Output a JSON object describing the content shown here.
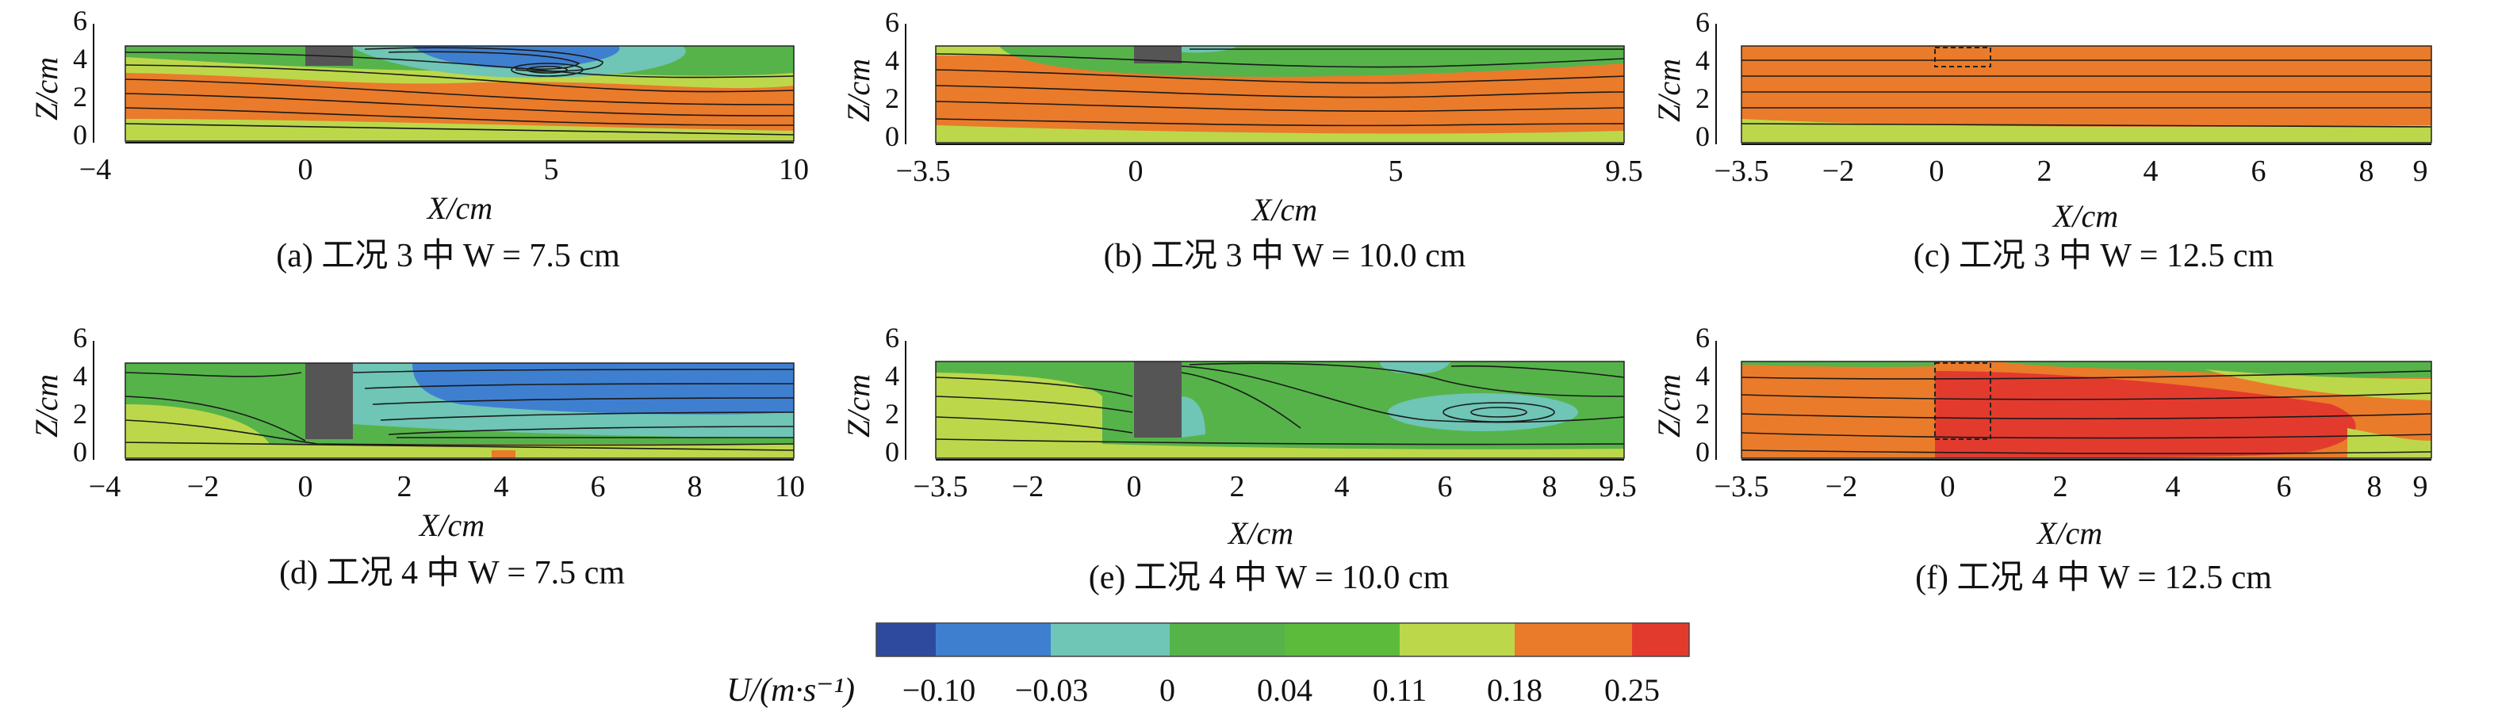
{
  "colors": {
    "c1": "#2e4a9e",
    "c2": "#3f7fd0",
    "c3": "#6fc5b6",
    "c4": "#56b34a",
    "c5": "#5dbb3c",
    "c6": "#bcd84a",
    "c7": "#ea7b2a",
    "c8": "#e33a2e",
    "obstacle": "#555555",
    "streamline": "#1a1a1a"
  },
  "x_label": "X/cm",
  "z_label": "Z/cm",
  "panels": [
    {
      "caption": "(a) 工况 3 中 W = 7.5 cm",
      "xrange": [
        -4,
        10
      ],
      "xticks": [
        "−4",
        "0",
        "5",
        "10"
      ],
      "xtick_values": [
        -4,
        0,
        5,
        10
      ],
      "zticks": [
        "0",
        "2",
        "4",
        "6"
      ],
      "obstacle": "solid-top",
      "vortex_x": 5.0
    },
    {
      "caption": "(b) 工况 3 中 W = 10.0 cm",
      "xrange": [
        -3.5,
        9.5
      ],
      "xticks": [
        "−3.5",
        "0",
        "5",
        "9.5"
      ],
      "xtick_values": [
        -3.5,
        0,
        5,
        9.5
      ],
      "zticks": [
        "0",
        "2",
        "4",
        "6"
      ],
      "obstacle": "solid-top",
      "vortex_x": null
    },
    {
      "caption": "(c) 工况 3 中 W = 12.5 cm",
      "xrange": [
        -3.5,
        9
      ],
      "xticks": [
        "−3.5",
        "−2",
        "0",
        "2",
        "4",
        "6",
        "8",
        "9"
      ],
      "xtick_values": [
        -3.5,
        -2,
        0,
        2,
        4,
        6,
        8,
        9
      ],
      "zticks": [
        "0",
        "2",
        "4",
        "6"
      ],
      "obstacle": "dashed-top",
      "vortex_x": null
    },
    {
      "caption": "(d) 工况 4 中 W = 7.5 cm",
      "xrange": [
        -4,
        10
      ],
      "xticks": [
        "−4",
        "−2",
        "0",
        "2",
        "4",
        "6",
        "8",
        "10"
      ],
      "xtick_values": [
        -4,
        -2,
        0,
        2,
        4,
        6,
        8,
        10
      ],
      "zticks": [
        "0",
        "2",
        "4",
        "6"
      ],
      "obstacle": "solid-tall",
      "vortex_x": null
    },
    {
      "caption": "(e) 工况 4 中 W = 10.0 cm",
      "xrange": [
        -3.5,
        9.5
      ],
      "xticks": [
        "−3.5",
        "−2",
        "0",
        "2",
        "4",
        "6",
        "8",
        "9.5"
      ],
      "xtick_values": [
        -3.5,
        -2,
        0,
        2,
        4,
        6,
        8,
        9.5
      ],
      "zticks": [
        "0",
        "2",
        "4",
        "6"
      ],
      "obstacle": "solid-tall",
      "vortex_x": 7.5
    },
    {
      "caption": "(f) 工况 4 中 W = 12.5 cm",
      "xrange": [
        -3.5,
        9
      ],
      "xticks": [
        "−3.5",
        "−2",
        "0",
        "2",
        "4",
        "6",
        "8",
        "9"
      ],
      "xtick_values": [
        -3.5,
        -2,
        0,
        2,
        4,
        6,
        8,
        9
      ],
      "zticks": [
        "0",
        "2",
        "4",
        "6"
      ],
      "obstacle": "dashed-tall",
      "vortex_x": null
    }
  ],
  "colorbar": {
    "label": "U/(m·s⁻¹)",
    "ticks": [
      "−0.10",
      "−0.03",
      "0",
      "0.04",
      "0.11",
      "0.18",
      "0.25"
    ]
  }
}
